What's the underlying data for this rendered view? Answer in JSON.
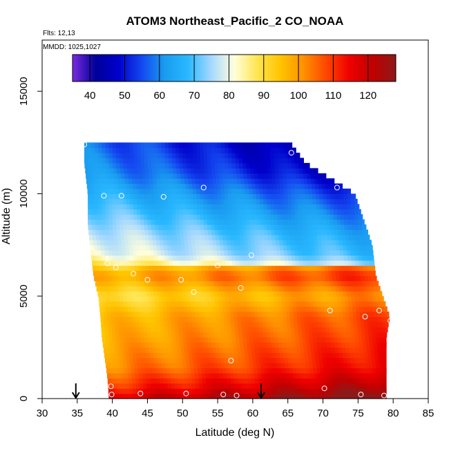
{
  "chart_data": {
    "type": "heatmap",
    "title": "ATOM3 Northeast_Pacific_2 CO_NOAA",
    "flights_text": "Flts: 12,13",
    "dates_text": "MMDD: 1025,1027",
    "xlabel": "Latitude (deg N)",
    "ylabel": "Altitude (m)",
    "xlim": [
      30,
      85
    ],
    "ylim": [
      0,
      17500
    ],
    "x_ticks": [
      30,
      35,
      40,
      45,
      50,
      55,
      60,
      65,
      70,
      75,
      80,
      85
    ],
    "y_ticks": [
      0,
      5000,
      10000,
      15000
    ],
    "y_tick_labels": [
      "0",
      "5000",
      "10000",
      "15000"
    ],
    "colorbar": {
      "range": [
        35,
        128
      ],
      "ticks": [
        40,
        50,
        60,
        70,
        80,
        90,
        100,
        110,
        120
      ],
      "tick_labels": [
        "40",
        "50",
        "60",
        "70",
        "80",
        "90",
        "100",
        "110",
        "120"
      ],
      "colors": [
        "#7a2be0",
        "#00009a",
        "#0000cc",
        "#1448f0",
        "#1a9cf0",
        "#29b8ff",
        "#a5d8ff",
        "#ffffdc",
        "#ffe552",
        "#ffc400",
        "#ff9100",
        "#ff4500",
        "#ef0000",
        "#c00000",
        "#8c1a1a"
      ],
      "cell_lines": [
        40,
        50,
        60,
        70,
        80,
        90,
        100,
        110,
        120
      ]
    },
    "grid": false,
    "legend": "colorbar at top of plot",
    "field_profile": [
      {
        "z": 0,
        "v": 118
      },
      {
        "z": 600,
        "v": 110
      },
      {
        "z": 1500,
        "v": 102
      },
      {
        "z": 3000,
        "v": 97
      },
      {
        "z": 4000,
        "v": 95
      },
      {
        "z": 5000,
        "v": 88
      },
      {
        "z": 6000,
        "v": 98
      },
      {
        "z": 7000,
        "v": 82
      },
      {
        "z": 8000,
        "v": 78
      },
      {
        "z": 9500,
        "v": 70
      },
      {
        "z": 11000,
        "v": 62
      },
      {
        "z": 12500,
        "v": 58
      }
    ],
    "domain_outline": [
      {
        "z": 0,
        "xmin": 39.5,
        "xmax": 79.0
      },
      {
        "z": 1000,
        "xmin": 39.3,
        "xmax": 79.0
      },
      {
        "z": 3000,
        "xmin": 38.5,
        "xmax": 79.0
      },
      {
        "z": 4000,
        "xmin": 38.3,
        "xmax": 79.5
      },
      {
        "z": 5000,
        "xmin": 38.0,
        "xmax": 78.5
      },
      {
        "z": 6000,
        "xmin": 37.3,
        "xmax": 77.5
      },
      {
        "z": 7500,
        "xmin": 36.8,
        "xmax": 77.0
      },
      {
        "z": 8500,
        "xmin": 36.5,
        "xmax": 76.0
      },
      {
        "z": 10000,
        "xmin": 36.5,
        "xmax": 74.5
      },
      {
        "z": 11500,
        "xmin": 36.0,
        "xmax": 67.5
      },
      {
        "z": 12500,
        "xmin": 36.0,
        "xmax": 65.3
      }
    ],
    "samples": [
      {
        "x": 36.0,
        "z": 12400
      },
      {
        "x": 65.5,
        "z": 12000
      },
      {
        "x": 72.0,
        "z": 10300
      },
      {
        "x": 53.0,
        "z": 10300
      },
      {
        "x": 38.8,
        "z": 9900
      },
      {
        "x": 41.3,
        "z": 9900
      },
      {
        "x": 47.3,
        "z": 9850
      },
      {
        "x": 37.0,
        "z": 7200
      },
      {
        "x": 59.8,
        "z": 7000
      },
      {
        "x": 39.3,
        "z": 6600
      },
      {
        "x": 40.5,
        "z": 6400
      },
      {
        "x": 55.0,
        "z": 6500
      },
      {
        "x": 43.0,
        "z": 6100
      },
      {
        "x": 45.0,
        "z": 5800
      },
      {
        "x": 49.8,
        "z": 5800
      },
      {
        "x": 58.3,
        "z": 5400
      },
      {
        "x": 51.6,
        "z": 5200
      },
      {
        "x": 71.0,
        "z": 4300
      },
      {
        "x": 78.0,
        "z": 4300
      },
      {
        "x": 76.0,
        "z": 4000
      },
      {
        "x": 79.6,
        "z": 3800
      },
      {
        "x": 56.9,
        "z": 1850
      },
      {
        "x": 39.8,
        "z": 600
      },
      {
        "x": 70.2,
        "z": 500
      },
      {
        "x": 39.9,
        "z": 200
      },
      {
        "x": 44.0,
        "z": 250
      },
      {
        "x": 50.5,
        "z": 250
      },
      {
        "x": 55.8,
        "z": 200
      },
      {
        "x": 57.7,
        "z": 150
      },
      {
        "x": 75.4,
        "z": 200
      },
      {
        "x": 78.7,
        "z": 150
      }
    ],
    "arrows": [
      {
        "x": 34.8
      },
      {
        "x": 61.2
      }
    ]
  }
}
